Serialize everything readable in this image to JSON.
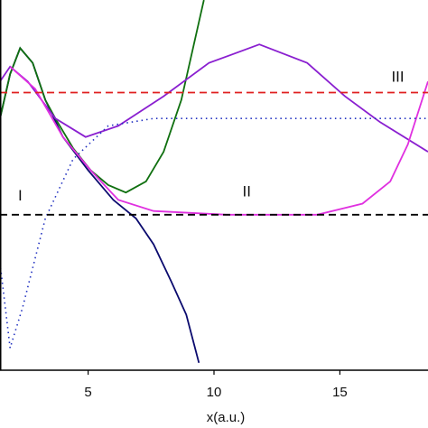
{
  "chart_data": {
    "type": "line",
    "xlabel": "x(a.u.)",
    "xlim": [
      1.5,
      18.5
    ],
    "xticks": [
      5,
      10,
      15
    ],
    "ylim": [
      0,
      100
    ],
    "annotations": [
      {
        "text": "I",
        "x": 2.3,
        "y": 47
      },
      {
        "text": "II",
        "x": 11.3,
        "y": 48
      },
      {
        "text": "III",
        "x": 17.3,
        "y": 79
      }
    ],
    "series": [
      {
        "color": "#0a0a6e",
        "dash": "solid",
        "x": [
          1.5,
          1.9,
          2.3,
          2.8,
          3.3,
          4.0,
          5.0,
          6.0,
          6.9,
          7.6,
          8.3,
          8.9,
          9.4
        ],
        "values": [
          68,
          80,
          87,
          83,
          73,
          63,
          54,
          46,
          41,
          34,
          24,
          15,
          2
        ]
      },
      {
        "color": "#107010",
        "dash": "solid",
        "x": [
          1.5,
          1.9,
          2.3,
          2.8,
          3.3,
          3.7,
          4.4,
          5.1,
          5.8,
          6.5,
          7.3,
          8.0,
          8.7,
          9.2,
          9.6
        ],
        "values": [
          68,
          80,
          87,
          83,
          73,
          68,
          60,
          54,
          50,
          48,
          51,
          59,
          73,
          88,
          100
        ]
      },
      {
        "color": "#8a1fd0",
        "dash": "solid",
        "x": [
          1.5,
          1.9,
          2.6,
          3.7,
          4.9,
          6.2,
          8.0,
          9.8,
          11.8,
          13.7,
          15.2,
          16.6,
          18.5
        ],
        "values": [
          78,
          82,
          78,
          68,
          63,
          66,
          74,
          83,
          88,
          83,
          74,
          67,
          59
        ]
      },
      {
        "color": "#e030e0",
        "dash": "solid",
        "x": [
          1.9,
          2.9,
          4.0,
          5.1,
          6.2,
          7.6,
          10.5,
          14.1,
          15.9,
          17.0,
          17.7,
          18.5
        ],
        "values": [
          82,
          76,
          63,
          54,
          46,
          43,
          42,
          42,
          45,
          51,
          61,
          78
        ]
      },
      {
        "color": "#2030c0",
        "dash": "dotted",
        "x": [
          1.5,
          1.9,
          2.4,
          3.3,
          4.4,
          5.8,
          7.6,
          10.5,
          18.5
        ],
        "values": [
          29,
          6,
          17,
          41,
          57,
          66,
          68,
          68,
          68
        ]
      },
      {
        "color": "#e02020",
        "dash": "dashed",
        "x": [
          1.5,
          18.5
        ],
        "values": [
          75,
          75
        ]
      },
      {
        "color": "#000000",
        "dash": "dashed",
        "x": [
          1.5,
          18.5
        ],
        "values": [
          42,
          42
        ]
      }
    ]
  }
}
